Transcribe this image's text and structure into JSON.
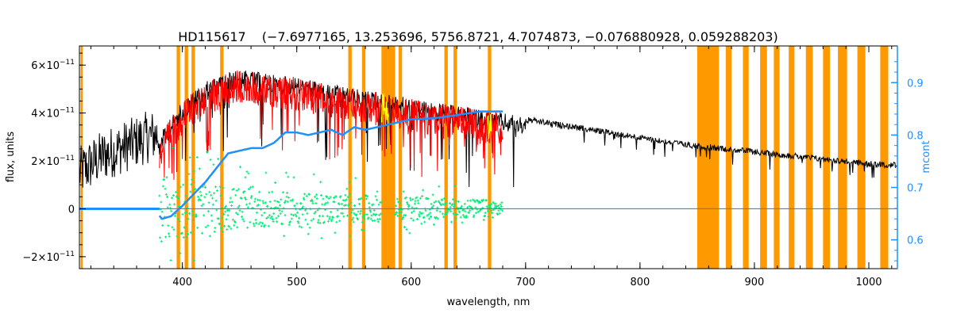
{
  "chart_data": {
    "type": "line",
    "title": "HD115617",
    "subtitle": "(−7.6977165, 13.253696, 5756.8721, 4.7074873, −0.076880928, 0.059288203)",
    "xlabel": "wavelength, nm",
    "ylabel": "flux, units",
    "ylabel_right": "mcont",
    "xlim": [
      310,
      1025
    ],
    "ylim": [
      -2.5e-11,
      6.8e-11
    ],
    "ylim_right": [
      0.545,
      0.97
    ],
    "x_ticks": [
      400,
      500,
      600,
      700,
      800,
      900,
      1000
    ],
    "x_tick_labels": [
      "400",
      "500",
      "600",
      "700",
      "800",
      "900",
      "1000"
    ],
    "y_ticks": [
      -2e-11,
      0,
      2e-11,
      4e-11,
      6e-11
    ],
    "y_tick_labels": [
      {
        "mantissa": "−2",
        "exp": "−11"
      },
      {
        "mantissa": "0",
        "exp": ""
      },
      {
        "mantissa": "2",
        "exp": "−11"
      },
      {
        "mantissa": "4",
        "exp": "−11"
      },
      {
        "mantissa": "6",
        "exp": "−11"
      }
    ],
    "y_ticks_right": [
      0.6,
      0.7,
      0.8,
      0.9
    ],
    "y_tick_labels_right": [
      "0.6",
      "0.7",
      "0.8",
      "0.9"
    ],
    "colors": {
      "observed": "#000000",
      "model": "#ff0000",
      "residual": "#00ee76",
      "continuum": "#1e90ff",
      "mask": "#ff9900",
      "highlight": "#ffff00"
    },
    "series": [
      {
        "key": "observed",
        "x": [
          310,
          330,
          350,
          370,
          380,
          390,
          400,
          420,
          440,
          450,
          460,
          480,
          500,
          520,
          540,
          560,
          580,
          600,
          620,
          640,
          660,
          680,
          700,
          720,
          740,
          760,
          780,
          800,
          820,
          840,
          860,
          880,
          900,
          920,
          940,
          960,
          980,
          1000,
          1025
        ],
        "y": [
          1.5e-11,
          2.2e-11,
          2.6e-11,
          3e-11,
          3.1e-11,
          3.8e-11,
          4.5e-11,
          5.3e-11,
          5.7e-11,
          5.8e-11,
          5.75e-11,
          5.6e-11,
          5.5e-11,
          5.3e-11,
          5.1e-11,
          4.95e-11,
          4.8e-11,
          4.6e-11,
          4.45e-11,
          4.3e-11,
          4.15e-11,
          4e-11,
          3.85e-11,
          3.7e-11,
          3.55e-11,
          3.4e-11,
          3.25e-11,
          3.1e-11,
          2.95e-11,
          2.8e-11,
          2.7e-11,
          2.6e-11,
          2.5e-11,
          2.4e-11,
          2.3e-11,
          2.2e-11,
          2.1e-11,
          2e-11,
          1.95e-11
        ]
      },
      {
        "key": "model",
        "x": [
          380,
          390,
          400,
          420,
          440,
          450,
          460,
          480,
          500,
          520,
          540,
          560,
          580,
          600,
          620,
          640,
          660,
          680
        ],
        "y": [
          3e-11,
          3.8e-11,
          4.5e-11,
          5.3e-11,
          5.7e-11,
          5.8e-11,
          5.75e-11,
          5.6e-11,
          5.5e-11,
          5.3e-11,
          5.1e-11,
          4.95e-11,
          4.8e-11,
          4.6e-11,
          4.45e-11,
          4.3e-11,
          4.15e-11,
          4.05e-11
        ]
      },
      {
        "key": "continuum",
        "x": [
          310,
          378,
          382,
          390,
          400,
          420,
          440,
          460,
          470,
          480,
          490,
          500,
          510,
          520,
          530,
          540,
          550,
          560,
          570,
          580,
          600,
          620,
          640,
          660,
          680
        ],
        "y": [
          0.652,
          0.652,
          0.64,
          0.645,
          0.665,
          0.71,
          0.765,
          0.775,
          0.775,
          0.785,
          0.805,
          0.805,
          0.8,
          0.805,
          0.81,
          0.8,
          0.815,
          0.81,
          0.815,
          0.82,
          0.83,
          0.832,
          0.838,
          0.845,
          0.845
        ]
      },
      {
        "key": "residual",
        "x_range": [
          380,
          680
        ],
        "gaps": [
          [
            574,
            586
          ]
        ],
        "envelope": [
          {
            "x": 380,
            "amp": 2e-11
          },
          {
            "x": 420,
            "amp": 1.5e-11
          },
          {
            "x": 480,
            "amp": 1e-11
          },
          {
            "x": 560,
            "amp": 8e-12
          },
          {
            "x": 680,
            "amp": 5e-12
          }
        ]
      }
    ],
    "masks": [
      [
        311,
        313
      ],
      [
        395,
        398
      ],
      [
        402,
        405
      ],
      [
        408,
        411
      ],
      [
        433,
        436
      ],
      [
        545,
        548
      ],
      [
        557,
        560
      ],
      [
        574,
        586
      ],
      [
        589,
        592
      ],
      [
        629,
        632
      ],
      [
        637,
        640
      ],
      [
        667,
        670
      ],
      [
        850,
        869
      ],
      [
        875,
        880
      ],
      [
        890,
        895
      ],
      [
        905,
        911
      ],
      [
        917,
        922
      ],
      [
        930,
        935
      ],
      [
        945,
        951
      ],
      [
        960,
        966
      ],
      [
        973,
        981
      ],
      [
        990,
        997
      ],
      [
        1010,
        1017
      ]
    ],
    "highlight_spans": [
      [
        574,
        580
      ],
      [
        667,
        670
      ]
    ]
  }
}
